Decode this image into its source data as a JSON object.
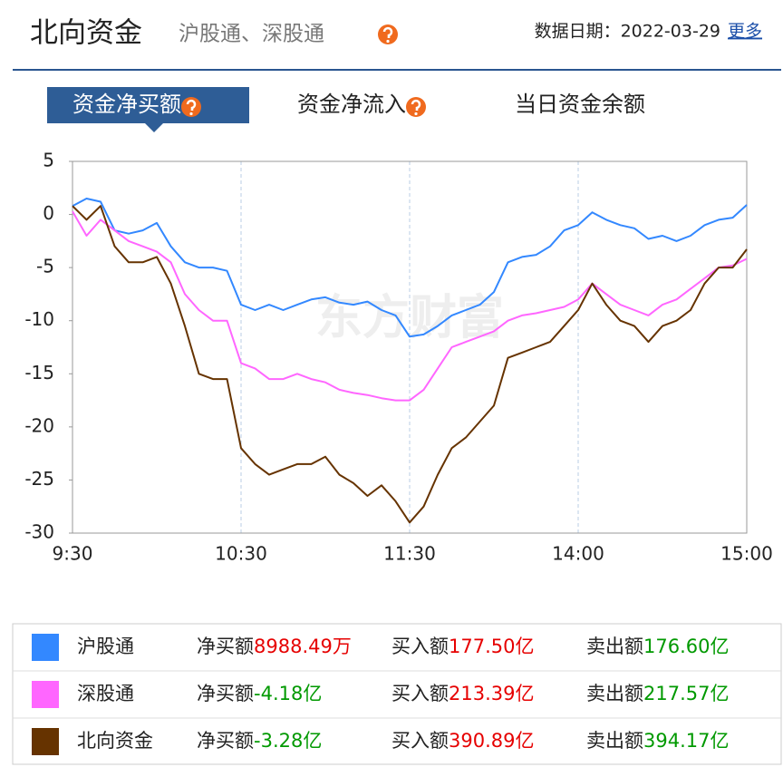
{
  "header": {
    "title": "北向资金",
    "subtitle": "沪股通、深股通",
    "date": "数据日期：2022-03-29",
    "more": "更多"
  },
  "tabs": [
    {
      "label": "资金净买额",
      "active": true,
      "help": true
    },
    {
      "label": "资金净流入",
      "active": false,
      "help": true
    },
    {
      "label": "当日资金余额",
      "active": false,
      "help": false
    }
  ],
  "chart_data": {
    "type": "line",
    "watermark": "东方财富",
    "x": [
      0,
      5,
      10,
      15,
      20,
      25,
      30,
      35,
      40,
      45,
      50,
      55,
      60,
      65,
      70,
      75,
      80,
      85,
      90,
      95,
      100,
      105,
      110,
      115,
      120,
      125,
      130,
      135,
      140,
      145,
      150,
      155,
      160,
      165,
      170,
      175,
      180,
      185,
      190,
      195,
      200,
      205,
      210,
      215,
      220,
      225,
      230,
      235,
      240
    ],
    "xlim": [
      0,
      240
    ],
    "xticks": [
      {
        "value": 0,
        "label": "9:30"
      },
      {
        "value": 60,
        "label": "10:30"
      },
      {
        "value": 120,
        "label": "11:30"
      },
      {
        "value": 180,
        "label": "14:00"
      },
      {
        "value": 240,
        "label": "15:00"
      }
    ],
    "ylim": [
      -30,
      5
    ],
    "yticks": [
      5,
      0,
      -5,
      -10,
      -15,
      -20,
      -25,
      -30
    ],
    "grid": "x",
    "series": [
      {
        "name": "沪股通",
        "color": "#3388ff",
        "values": [
          0.8,
          1.5,
          1.2,
          -1.5,
          -1.8,
          -1.5,
          -0.8,
          -3,
          -4.5,
          -5,
          -5,
          -5.3,
          -8.5,
          -9,
          -8.5,
          -9,
          -8.5,
          -8,
          -7.8,
          -8.3,
          -8.5,
          -8.2,
          -9,
          -9.5,
          -11.5,
          -11.3,
          -10.5,
          -9.5,
          -9,
          -8.5,
          -7.3,
          -4.5,
          -4,
          -3.8,
          -3,
          -1.5,
          -1,
          0.2,
          -0.5,
          -1,
          -1.3,
          -2.3,
          -2,
          -2.5,
          -2,
          -1,
          -0.5,
          -0.3,
          0.9
        ]
      },
      {
        "name": "深股通",
        "color": "#ff66ff",
        "values": [
          0.3,
          -2,
          -0.5,
          -1.5,
          -2.5,
          -3,
          -3.5,
          -4.5,
          -7.5,
          -9,
          -10,
          -10,
          -14,
          -14.5,
          -15.5,
          -15.5,
          -15,
          -15.5,
          -15.8,
          -16.5,
          -16.8,
          -17,
          -17.3,
          -17.5,
          -17.5,
          -16.5,
          -14.5,
          -12.5,
          -12,
          -11.5,
          -11,
          -10,
          -9.5,
          -9.3,
          -9,
          -8.7,
          -8,
          -6.5,
          -7.5,
          -8.5,
          -9,
          -9.5,
          -8.5,
          -8,
          -7,
          -6,
          -5,
          -4.8,
          -4.18
        ]
      },
      {
        "name": "北向资金",
        "color": "#663300",
        "values": [
          0.8,
          -0.5,
          0.8,
          -3,
          -4.5,
          -4.5,
          -4,
          -6.5,
          -10.5,
          -15,
          -15.5,
          -15.5,
          -22,
          -23.5,
          -24.5,
          -24,
          -23.5,
          -23.5,
          -22.8,
          -24.5,
          -25.3,
          -26.5,
          -25.5,
          -27,
          -29,
          -27.5,
          -24.5,
          -22,
          -21,
          -19.5,
          -18,
          -13.5,
          -13,
          -12.5,
          -12,
          -10.5,
          -9,
          -6.5,
          -8.5,
          -10,
          -10.5,
          -12,
          -10.5,
          -10,
          -9,
          -6.5,
          -5,
          -5,
          -3.28
        ]
      }
    ]
  },
  "table": {
    "rows": [
      {
        "net_label": "净买额",
        "net": "8988.49万",
        "net_color": "#e60000",
        "buy_label": "买入额",
        "buy": "177.50亿",
        "sell_label": "卖出额",
        "sell": "176.60亿"
      },
      {
        "net_label": "净买额",
        "net": "-4.18亿",
        "net_color": "#009900",
        "buy_label": "买入额",
        "buy": "213.39亿",
        "sell_label": "卖出额",
        "sell": "217.57亿"
      },
      {
        "net_label": "净买额",
        "net": "-3.28亿",
        "net_color": "#009900",
        "buy_label": "买入额",
        "buy": "390.89亿",
        "sell_label": "卖出额",
        "sell": "394.17亿"
      }
    ],
    "buy_color": "#e60000",
    "sell_color": "#009900"
  }
}
